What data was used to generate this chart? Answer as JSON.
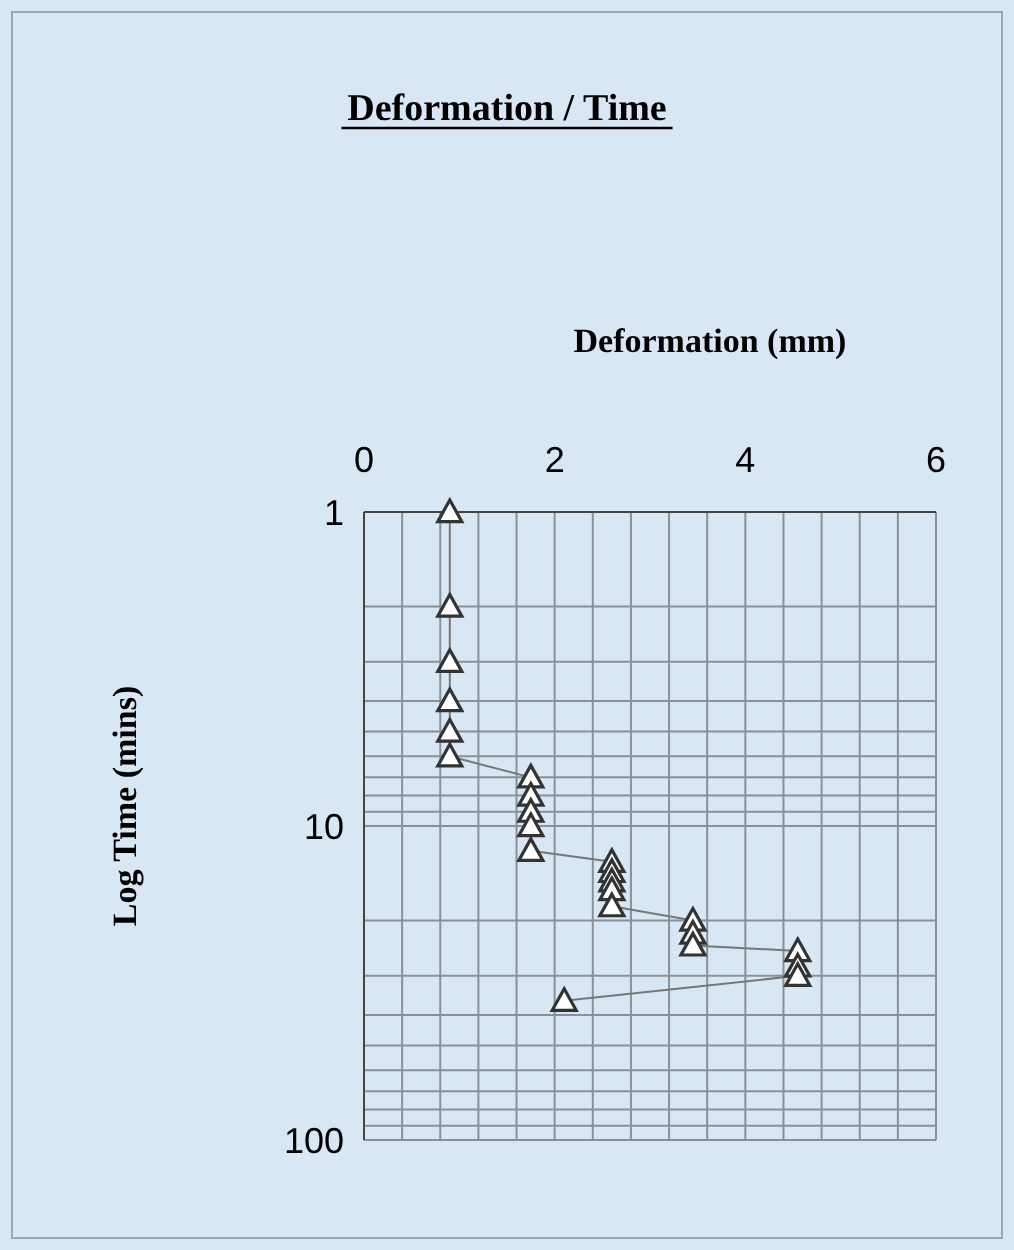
{
  "chart_data": {
    "type": "line",
    "title": "Deformation / Time",
    "xlabel": "Deformation (mm)",
    "ylabel": "Log Time (mins)",
    "log": "y",
    "grid": true,
    "marker": "triangle",
    "line_style": "solid",
    "xlim": [
      0,
      6
    ],
    "xticks": [
      0,
      {
        "value": 0.4,
        "label": null
      },
      {
        "value": 0.8,
        "label": null
      },
      {
        "value": 1.2,
        "label": null
      },
      {
        "value": 1.6,
        "label": null
      },
      2,
      {
        "value": 2.4,
        "label": null
      },
      {
        "value": 2.8,
        "label": null
      },
      {
        "value": 3.2,
        "label": null
      },
      {
        "value": 3.6,
        "label": null
      },
      4,
      {
        "value": 4.4,
        "label": null
      },
      {
        "value": 4.8,
        "label": null
      },
      {
        "value": 5.2,
        "label": null
      },
      {
        "value": 5.6,
        "label": null
      },
      6
    ],
    "ylim": [
      100,
      1
    ],
    "yticks": [
      1,
      {
        "value": 2,
        "label": null
      },
      {
        "value": 3,
        "label": null
      },
      {
        "value": 4,
        "label": null
      },
      {
        "value": 5,
        "label": null
      },
      {
        "value": 6,
        "label": null
      },
      {
        "value": 7,
        "label": null
      },
      {
        "value": 8,
        "label": null
      },
      {
        "value": 9,
        "label": null
      },
      10,
      {
        "value": 20,
        "label": null
      },
      {
        "value": 30,
        "label": null
      },
      {
        "value": 40,
        "label": null
      },
      {
        "value": 50,
        "label": null
      },
      {
        "value": 60,
        "label": null
      },
      {
        "value": 70,
        "label": null
      },
      {
        "value": 80,
        "label": null
      },
      {
        "value": 90,
        "label": null
      },
      100
    ],
    "series": [
      {
        "color": "#333333",
        "x": [
          0.9,
          0.9,
          0.9,
          0.9,
          0.9,
          0.9,
          1.75,
          1.75,
          1.75,
          1.75,
          1.75,
          2.6,
          2.6,
          2.6,
          2.6,
          2.6,
          3.45,
          3.45,
          3.45,
          4.55,
          4.55,
          4.55,
          2.1
        ],
        "values": [
          1,
          2,
          3,
          4,
          5,
          6,
          7,
          8,
          9,
          10,
          12,
          13,
          14,
          15,
          16,
          18,
          20,
          22,
          24,
          25,
          28,
          30,
          36
        ]
      }
    ]
  }
}
